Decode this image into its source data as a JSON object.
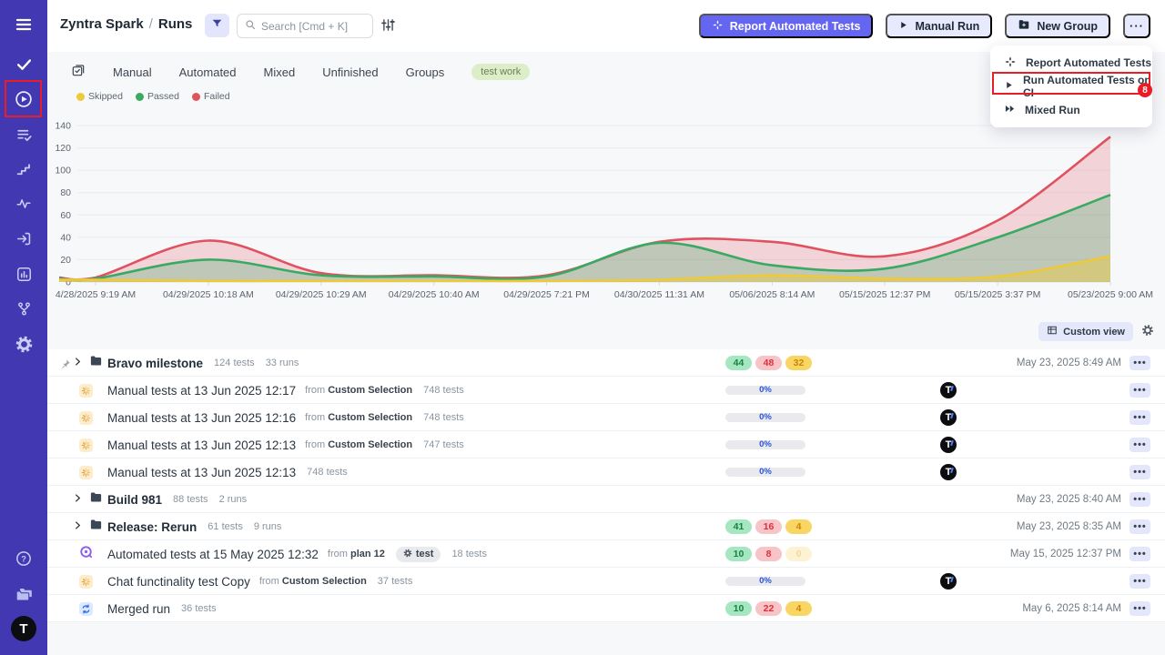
{
  "colors": {
    "sidebar_bg": "#4138b2",
    "primary_button": "#6466f1",
    "light_button": "#e7e9fd",
    "annotation_red": "#ea1c25",
    "passed": "#3aa963",
    "failed": "#e05260",
    "skipped": "#eec93a",
    "tag_green_bg": "#dcedc8"
  },
  "sidebar": {
    "top_icons": [
      "menu-icon",
      "check-icon",
      "play-circle-icon",
      "list-check-icon",
      "steps-icon",
      "activity-icon",
      "import-icon",
      "bar-chart-icon",
      "branch-icon",
      "gear-icon"
    ],
    "bottom_icons": [
      "help-icon",
      "folders-icon",
      "logo"
    ],
    "logo_letter": "T"
  },
  "header": {
    "project": "Zyntra Spark",
    "separator": "/",
    "page": "Runs",
    "search_placeholder": "Search [Cmd + K]",
    "report_button": "Report Automated Tests",
    "manual_run_button": "Manual Run",
    "new_group_button": "New Group",
    "more_button": "···"
  },
  "dropdown": {
    "items": [
      {
        "icon": "automation-icon",
        "label": "Report Automated Tests"
      },
      {
        "icon": "play-icon",
        "label": "Run Automated Tests on CI",
        "highlighted": true,
        "badge": "8"
      },
      {
        "icon": "fast-forward-icon",
        "label": "Mixed Run"
      }
    ]
  },
  "tabs": [
    {
      "label": "Manual"
    },
    {
      "label": "Automated"
    },
    {
      "label": "Mixed"
    },
    {
      "label": "Unfinished"
    },
    {
      "label": "Groups"
    }
  ],
  "filter_tag": "test work",
  "legend": [
    {
      "label": "Skipped",
      "color": "#eec93a"
    },
    {
      "label": "Passed",
      "color": "#3aa963"
    },
    {
      "label": "Failed",
      "color": "#e05260"
    }
  ],
  "chart_data": {
    "type": "area",
    "x": [
      "4/28/2025 9:19 AM",
      "04/29/2025 10:18 AM",
      "04/29/2025 10:29 AM",
      "04/29/2025 10:40 AM",
      "04/29/2025 7:21 PM",
      "04/30/2025 11:31 AM",
      "05/06/2025 8:14 AM",
      "05/15/2025 12:37 PM",
      "05/15/2025 3:37 PM",
      "05/23/2025 9:00 AM"
    ],
    "series": [
      {
        "name": "Failed",
        "color": "#e05260",
        "values": [
          4,
          37,
          8,
          6,
          6,
          36,
          36,
          23,
          55,
          130
        ]
      },
      {
        "name": "Passed",
        "color": "#3aa963",
        "values": [
          3,
          20,
          6,
          5,
          5,
          35,
          15,
          12,
          40,
          78
        ]
      },
      {
        "name": "Skipped",
        "color": "#eec93a",
        "values": [
          2,
          1,
          1,
          1,
          1,
          2,
          6,
          3,
          5,
          23
        ]
      }
    ],
    "ylim": [
      0,
      140
    ],
    "yticks": [
      0,
      20,
      40,
      60,
      80,
      100,
      120,
      140
    ],
    "grid": true,
    "legend_position": "top-left"
  },
  "toolbar": {
    "custom_view": "Custom view"
  },
  "runs": [
    {
      "kind": "group",
      "pinned": true,
      "title": "Bravo milestone",
      "meta": [
        "124 tests",
        "33 runs"
      ],
      "badges": {
        "passed": "44",
        "failed": "48",
        "skipped": "32"
      },
      "timestamp": "May 23, 2025 8:49 AM"
    },
    {
      "kind": "run",
      "icons": [
        "globe",
        "spinner"
      ],
      "title": "Manual tests at 13 Jun 2025 12:17",
      "from": "Custom Selection",
      "meta": [
        "748 tests"
      ],
      "progress": "0%",
      "assignee": "T"
    },
    {
      "kind": "run",
      "icons": [
        "globe",
        "spinner"
      ],
      "title": "Manual tests at 13 Jun 2025 12:16",
      "from": "Custom Selection",
      "meta": [
        "748 tests"
      ],
      "progress": "0%",
      "assignee": "T"
    },
    {
      "kind": "run",
      "icons": [
        "globe",
        "spinner"
      ],
      "title": "Manual tests at 13 Jun 2025 12:13",
      "from": "Custom Selection",
      "meta": [
        "747 tests"
      ],
      "progress": "0%",
      "assignee": "T"
    },
    {
      "kind": "run",
      "icons": [
        "globe",
        "spinner"
      ],
      "title": "Manual tests at 13 Jun 2025 12:13",
      "meta": [
        "748 tests"
      ],
      "progress": "0%",
      "assignee": "T"
    },
    {
      "kind": "group",
      "title": "Build 981",
      "meta": [
        "88 tests",
        "2 runs"
      ],
      "timestamp": "May 23, 2025 8:40 AM"
    },
    {
      "kind": "group",
      "title": "Release: Rerun",
      "meta": [
        "61 tests",
        "9 runs"
      ],
      "badges": {
        "passed": "41",
        "failed": "16",
        "skipped": "4"
      },
      "timestamp": "May 23, 2025 8:35 AM"
    },
    {
      "kind": "run",
      "icons": [
        "minus-circle",
        "automated"
      ],
      "title": "Automated tests at 15 May 2025 12:32",
      "from": "plan 12",
      "tag": "test",
      "meta": [
        "18 tests"
      ],
      "badges": {
        "passed": "10",
        "failed": "8",
        "skipped": "0",
        "skipped_muted": true
      },
      "timestamp": "May 15, 2025 12:37 PM"
    },
    {
      "kind": "run",
      "icons": [
        "globe",
        "spinner"
      ],
      "title": "Chat functinality test Copy",
      "from": "Custom Selection",
      "meta": [
        "37 tests"
      ],
      "progress": "0%",
      "assignee": "T"
    },
    {
      "kind": "run",
      "icons": [
        "minus-circle",
        "merged"
      ],
      "title": "Merged run",
      "meta": [
        "36 tests"
      ],
      "badges": {
        "passed": "10",
        "failed": "22",
        "skipped": "4"
      },
      "timestamp": "May 6, 2025 8:14 AM"
    }
  ]
}
